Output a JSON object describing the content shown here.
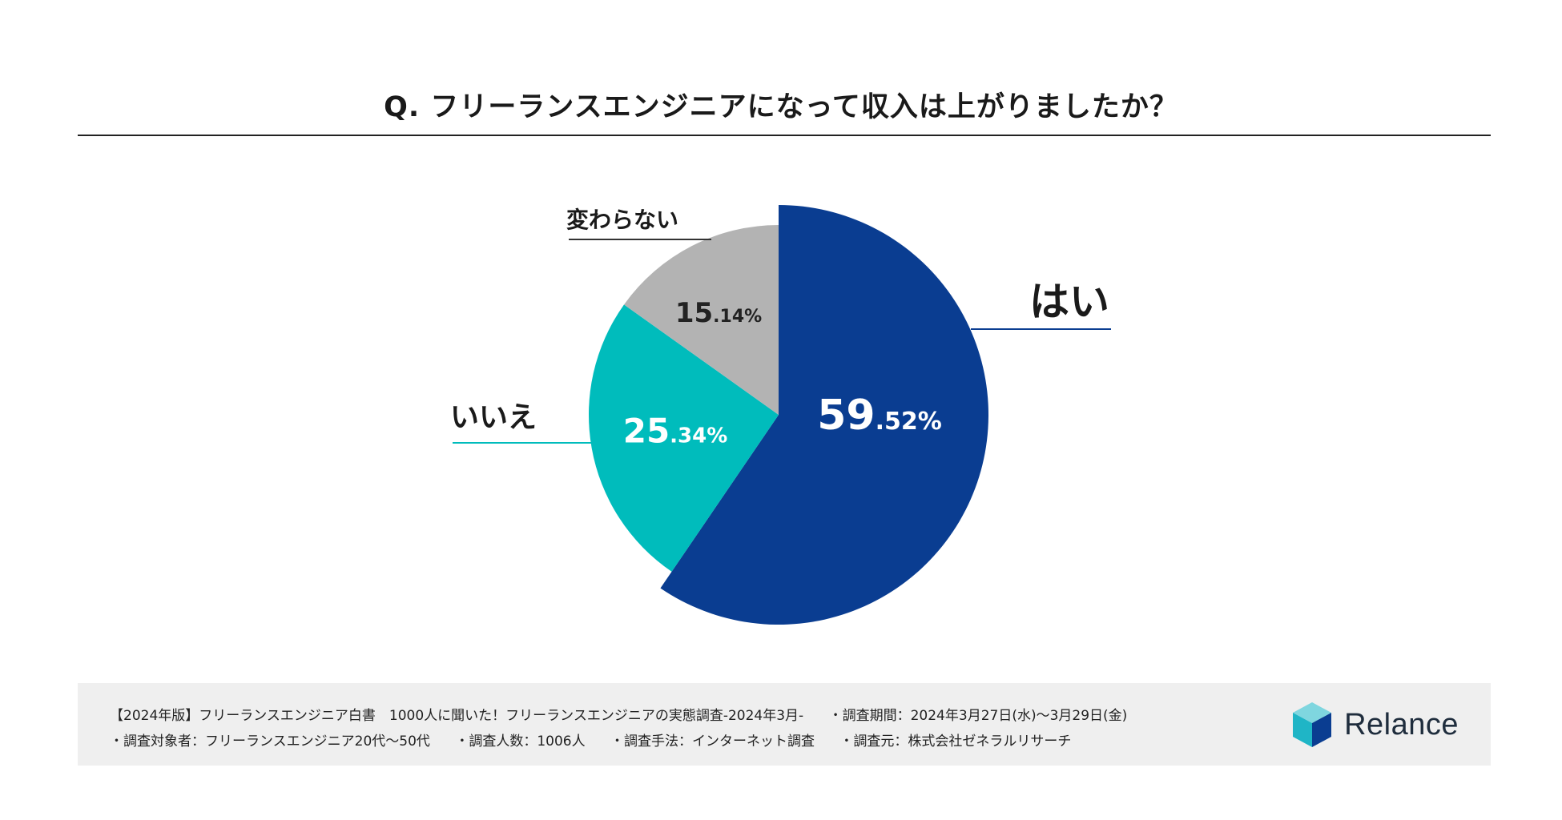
{
  "chart_data": {
    "type": "pie",
    "title": "Q. フリーランスエンジニアになって収入は上がりましたか？",
    "slices": [
      {
        "key": "yes",
        "label": "はい",
        "value": 59.52,
        "int_part": "59",
        "dec_part": ".52%",
        "color": "#0a3d91"
      },
      {
        "key": "no",
        "label": "いいえ",
        "value": 25.34,
        "int_part": "25",
        "dec_part": ".34%",
        "color": "#00bcbc"
      },
      {
        "key": "same",
        "label": "変わらない",
        "value": 15.14,
        "int_part": "15",
        "dec_part": ".14%",
        "color": "#b3b3b3"
      }
    ]
  },
  "footer": {
    "line1": [
      "【2024年版】フリーランスエンジニア白書　1000人に聞いた！フリーランスエンジニアの実態調査-2024年3月-",
      "・調査期間：2024年3月27日(水)〜3月29日(金)"
    ],
    "line2": [
      "・調査対象者：フリーランスエンジニア20代〜50代",
      "・調査人数：1006人",
      "・調査手法：インターネット調査",
      "・調査元：株式会社ゼネラルリサーチ"
    ]
  },
  "logo": {
    "name": "Relance",
    "colors": [
      "#1fb5c6",
      "#0a3d91",
      "#7fd6df"
    ]
  }
}
